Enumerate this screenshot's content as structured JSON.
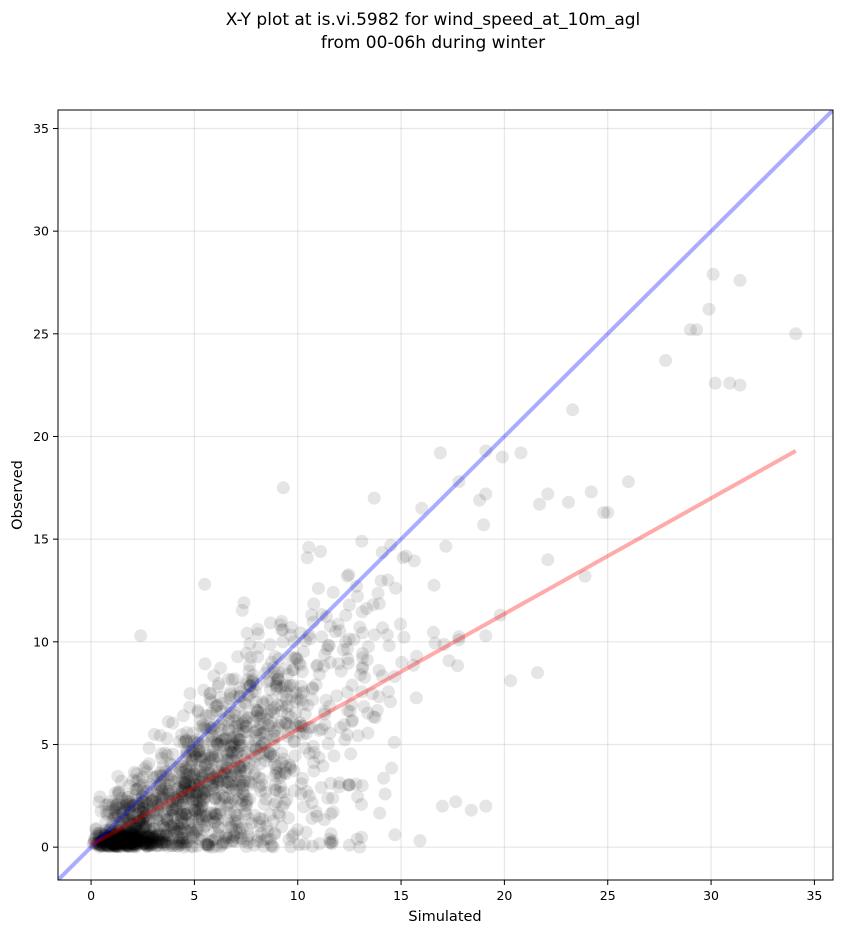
{
  "chart_data": {
    "type": "scatter",
    "title_line1": "X-Y plot at is.vi.5982 for wind_speed_at_10m_agl",
    "title_line2": "from 00-06h during winter",
    "xlabel": "Simulated",
    "ylabel": "Observed",
    "xlim": [
      -1.6,
      35.9
    ],
    "ylim": [
      -1.6,
      35.9
    ],
    "xticks": [
      0,
      5,
      10,
      15,
      20,
      25,
      30,
      35
    ],
    "yticks": [
      0,
      5,
      10,
      15,
      20,
      25,
      30,
      35
    ],
    "grid": true,
    "point_color": "#000000",
    "point_alpha": 0.1,
    "identity_line": {
      "color": "#0000ff",
      "alpha": 0.33,
      "from": [
        -1.6,
        -1.6
      ],
      "to": [
        35.9,
        35.9
      ]
    },
    "fit_line": {
      "color": "#ff0000",
      "alpha": 0.33,
      "from": [
        0,
        0.1
      ],
      "to": [
        34.1,
        19.3
      ]
    },
    "outliers": [
      [
        30.1,
        27.9
      ],
      [
        31.4,
        27.6
      ],
      [
        29.9,
        26.2
      ],
      [
        29.0,
        25.2
      ],
      [
        29.3,
        25.2
      ],
      [
        34.1,
        25.0
      ],
      [
        27.8,
        23.7
      ],
      [
        30.2,
        22.6
      ],
      [
        30.9,
        22.6
      ],
      [
        31.4,
        22.5
      ],
      [
        23.3,
        21.3
      ],
      [
        16.9,
        19.2
      ],
      [
        20.8,
        19.2
      ],
      [
        19.9,
        19.0
      ],
      [
        19.1,
        19.3
      ],
      [
        9.3,
        17.5
      ],
      [
        13.7,
        17.0
      ],
      [
        19.1,
        17.2
      ],
      [
        22.1,
        17.2
      ],
      [
        21.7,
        16.7
      ],
      [
        23.1,
        16.8
      ],
      [
        24.2,
        17.3
      ],
      [
        26.0,
        17.8
      ],
      [
        24.8,
        16.3
      ],
      [
        25.0,
        16.3
      ],
      [
        18.8,
        16.9
      ],
      [
        19.0,
        15.7
      ],
      [
        16.0,
        16.5
      ],
      [
        22.1,
        14.0
      ],
      [
        23.9,
        13.2
      ],
      [
        20.3,
        8.1
      ],
      [
        21.6,
        8.5
      ],
      [
        19.1,
        2.0
      ],
      [
        18.4,
        1.8
      ],
      [
        14.7,
        0.6
      ],
      [
        13.0,
        0.0
      ],
      [
        12.5,
        0.1
      ],
      [
        17.0,
        2.0
      ],
      [
        5.5,
        12.8
      ],
      [
        2.4,
        10.3
      ],
      [
        7.4,
        11.9
      ],
      [
        11.1,
        14.4
      ],
      [
        12.4,
        13.2
      ],
      [
        11.0,
        12.6
      ],
      [
        13.1,
        14.9
      ],
      [
        19.8,
        11.3
      ],
      [
        19.1,
        10.3
      ],
      [
        15.1,
        14.1
      ],
      [
        14.5,
        14.7
      ],
      [
        17.8,
        17.8
      ]
    ]
  }
}
